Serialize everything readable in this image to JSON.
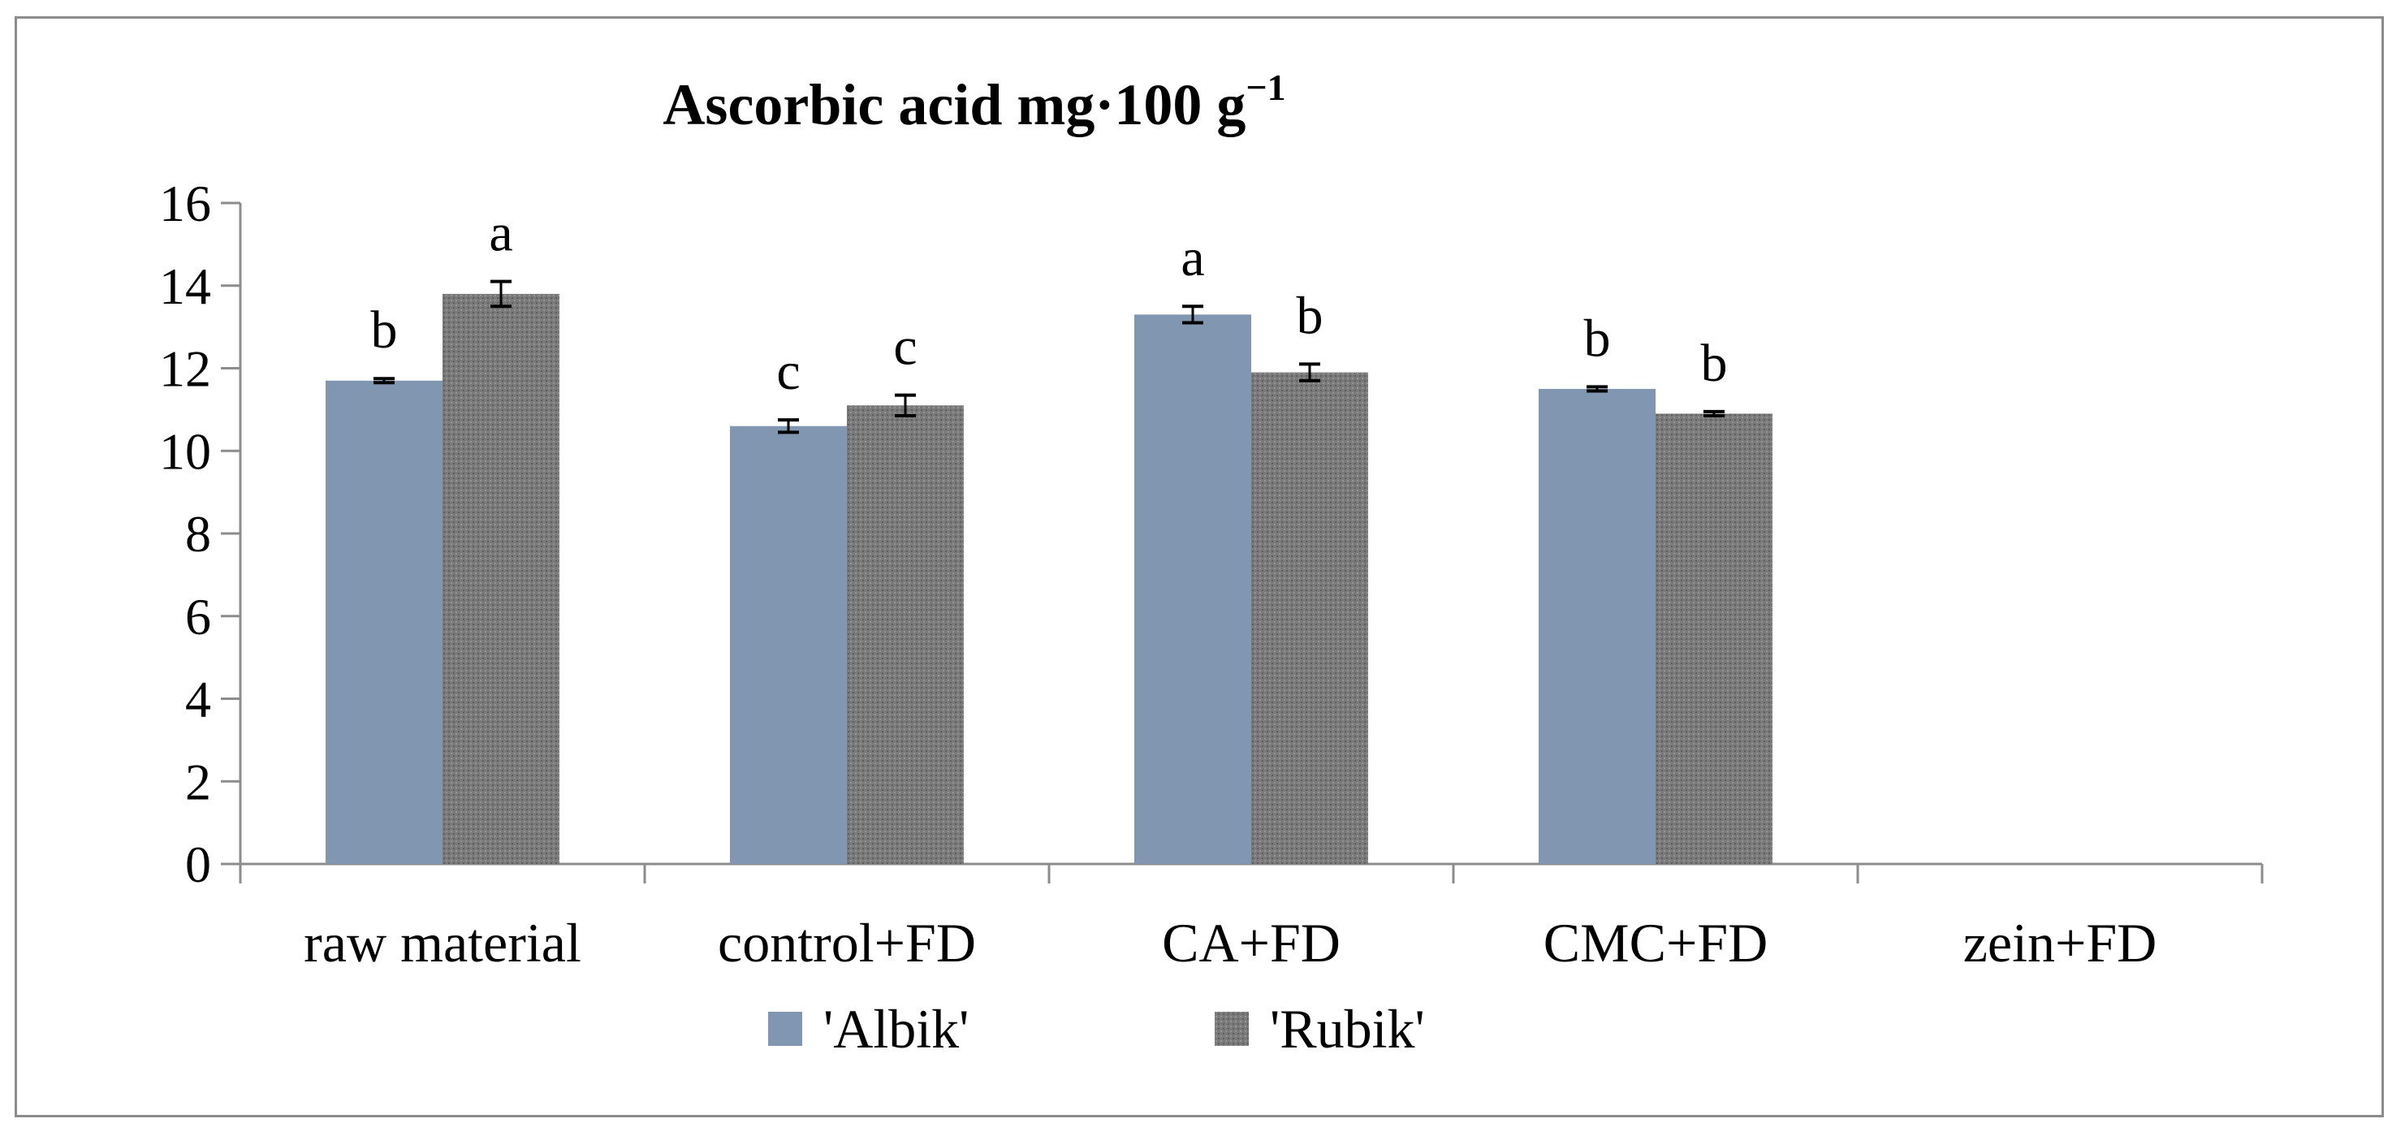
{
  "chart_data": {
    "type": "bar",
    "title_main": "Ascorbic acid mg·100 g",
    "title_sup": "−1",
    "categories": [
      "raw material",
      "control+FD",
      "CA+FD",
      "CMC+FD",
      "zein+FD"
    ],
    "ylim": [
      0,
      16
    ],
    "yticks": [
      0,
      2,
      4,
      6,
      8,
      10,
      12,
      14,
      16
    ],
    "legend_position": "bottom",
    "grid": false,
    "series": [
      {
        "name": "'Albik'",
        "color": "#8196b0",
        "values": [
          11.7,
          10.6,
          13.3,
          11.5,
          null
        ],
        "errors": [
          0.05,
          0.15,
          0.2,
          0.05,
          null
        ],
        "letters": [
          "b",
          "c",
          "a",
          "b",
          ""
        ]
      },
      {
        "name": "'Rubik'",
        "color": "#7a7a7a",
        "values": [
          13.8,
          11.1,
          11.9,
          10.9,
          null
        ],
        "errors": [
          0.3,
          0.25,
          0.2,
          0.05,
          null
        ],
        "letters": [
          "a",
          "c",
          "b",
          "b",
          ""
        ]
      }
    ]
  }
}
